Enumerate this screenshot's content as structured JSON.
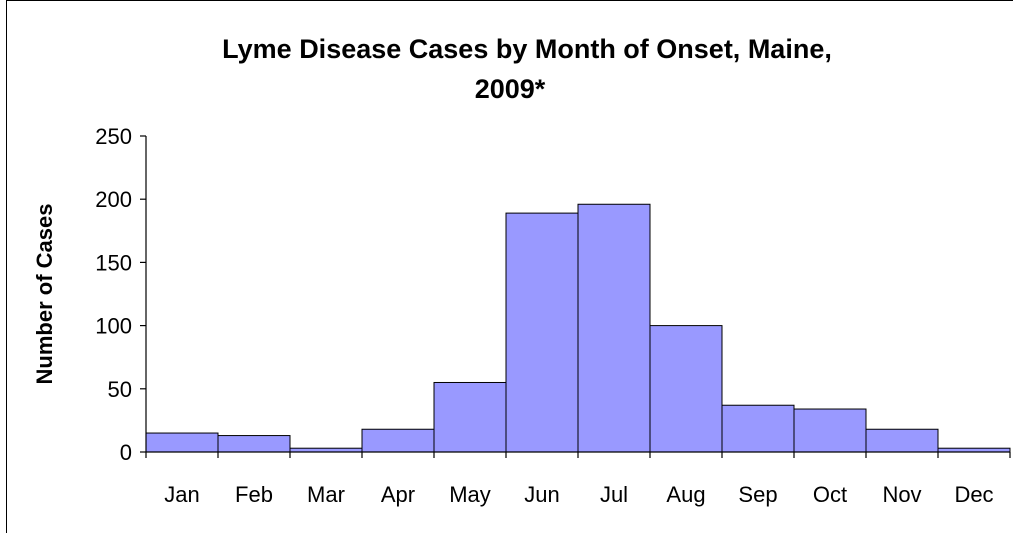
{
  "chart_data": {
    "type": "bar",
    "title": "Lyme Disease Cases by Month of Onset, Maine,",
    "title_line2": "2009*",
    "xlabel": "",
    "ylabel": "Number of Cases",
    "categories": [
      "Jan",
      "Feb",
      "Mar",
      "Apr",
      "May",
      "Jun",
      "Jul",
      "Aug",
      "Sep",
      "Oct",
      "Nov",
      "Dec"
    ],
    "values": [
      15,
      13,
      3,
      18,
      55,
      189,
      196,
      100,
      37,
      34,
      18,
      3
    ],
    "ylim": [
      0,
      250
    ],
    "yticks": [
      0,
      50,
      100,
      150,
      200,
      250
    ],
    "ytick_labels": [
      "0",
      "50",
      "100",
      "150",
      "200",
      "250"
    ],
    "grid": false,
    "legend": "none",
    "bar_color": "#9999ff",
    "bar_edge_color": "#000000"
  }
}
